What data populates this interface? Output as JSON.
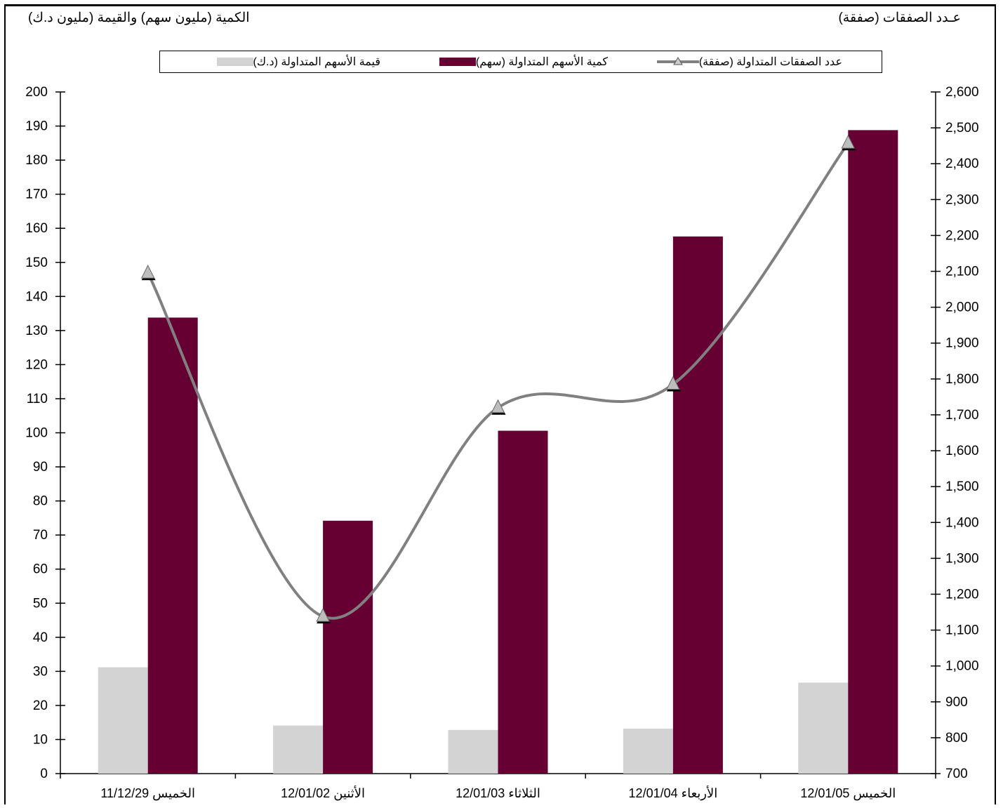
{
  "titles": {
    "left_axis": "الكمية (مليون سهم) والقيمة (مليون د.ك)",
    "right_axis": "عـدد الصفقات (صفقة)"
  },
  "legend": {
    "count": "عدد الصفقات المتداولة (صفقة)",
    "quantity": "كمية الأسهم المتداولة (سهم)",
    "value": "قيمة الأسهم  المتداولة (د.ك)"
  },
  "colors": {
    "quantity": "#660033",
    "value": "#d3d3d3",
    "count_line": "#808080",
    "marker": "#000000"
  },
  "chart_data": {
    "type": "bar",
    "categories": [
      "11/12/29 الخميس",
      "12/01/02 الأثنين",
      "12/01/03 الثلاثاء",
      "12/01/04 الأربعاء",
      "12/01/05 الخميس"
    ],
    "series": [
      {
        "name": "قيمة الأسهم  المتداولة (د.ك)",
        "axis": "left",
        "type": "bar",
        "values": [
          31.2,
          14.1,
          12.8,
          13.2,
          26.7
        ]
      },
      {
        "name": "كمية الأسهم المتداولة (سهم)",
        "axis": "left",
        "type": "bar",
        "values": [
          133.8,
          74.2,
          100.6,
          157.6,
          188.8
        ]
      },
      {
        "name": "عدد الصفقات المتداولة (صفقة)",
        "axis": "right",
        "type": "line",
        "marker": "triangle",
        "values": [
          2095,
          1138,
          1720,
          1785,
          2457
        ]
      }
    ],
    "y_left": {
      "min": 0,
      "max": 200,
      "step": 10
    },
    "y_right": {
      "min": 700,
      "max": 2600,
      "step": 100
    },
    "left_ticks": [
      "0",
      "10",
      "20",
      "30",
      "40",
      "50",
      "60",
      "70",
      "80",
      "90",
      "100",
      "110",
      "120",
      "130",
      "140",
      "150",
      "160",
      "170",
      "180",
      "190",
      "200"
    ],
    "right_ticks": [
      "700",
      "800",
      "900",
      "1,000",
      "1,100",
      "1,200",
      "1,300",
      "1,400",
      "1,500",
      "1,600",
      "1,700",
      "1,800",
      "1,900",
      "2,000",
      "2,100",
      "2,200",
      "2,300",
      "2,400",
      "2,500",
      "2,600"
    ],
    "grid": false,
    "legend_position": "top"
  }
}
